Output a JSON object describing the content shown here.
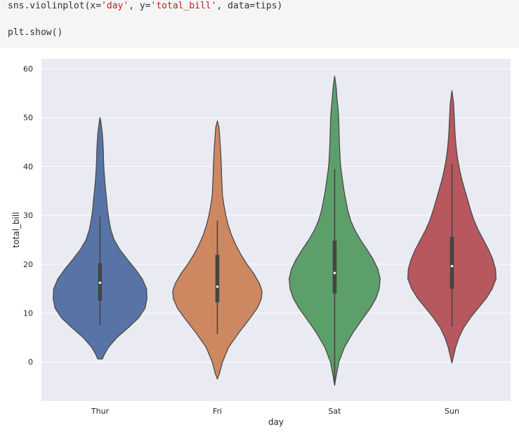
{
  "code": {
    "line1": {
      "t1": "sns.violinplot(x=",
      "s1": "'day'",
      "t2": ", y=",
      "s2": "'total_bill'",
      "t3": ", data=tips)"
    },
    "line2": "plt.show()"
  },
  "chart_data": {
    "type": "violin",
    "title": "",
    "xlabel": "day",
    "ylabel": "total_bill",
    "ylim": [
      -8,
      62
    ],
    "yticks": [
      0,
      10,
      20,
      30,
      40,
      50,
      60
    ],
    "grid": true,
    "background": "#eaeaf2",
    "categories": [
      "Thur",
      "Fri",
      "Sat",
      "Sun"
    ],
    "colors": [
      "#5874a6",
      "#cd8862",
      "#5d9f6a",
      "#b7585e"
    ],
    "edge_color": "#4a4a4a",
    "violins": [
      {
        "category": "Thur",
        "profile": [
          [
            0.6,
            0.05
          ],
          [
            1.5,
            0.09
          ],
          [
            3,
            0.18
          ],
          [
            5,
            0.36
          ],
          [
            7,
            0.6
          ],
          [
            9,
            0.82
          ],
          [
            11,
            0.96
          ],
          [
            13,
            1.0
          ],
          [
            15,
            0.99
          ],
          [
            17,
            0.9
          ],
          [
            19,
            0.75
          ],
          [
            21,
            0.58
          ],
          [
            23,
            0.42
          ],
          [
            25,
            0.3
          ],
          [
            27,
            0.23
          ],
          [
            29,
            0.19
          ],
          [
            31,
            0.16
          ],
          [
            33,
            0.14
          ],
          [
            35,
            0.12
          ],
          [
            37,
            0.1
          ],
          [
            39,
            0.085
          ],
          [
            41,
            0.075
          ],
          [
            43,
            0.07
          ],
          [
            45,
            0.06
          ],
          [
            47,
            0.045
          ],
          [
            49,
            0.02
          ],
          [
            50,
            0.0
          ]
        ],
        "box": {
          "q1": 12.5,
          "median": 16.2,
          "q3": 20.2,
          "whisker_low": 7.5,
          "whisker_high": 29.8
        }
      },
      {
        "category": "Fri",
        "profile": [
          [
            -3.5,
            0.0
          ],
          [
            -2.5,
            0.04
          ],
          [
            0,
            0.11
          ],
          [
            3,
            0.24
          ],
          [
            6,
            0.46
          ],
          [
            9,
            0.7
          ],
          [
            11,
            0.85
          ],
          [
            13,
            0.94
          ],
          [
            14.5,
            0.95
          ],
          [
            16,
            0.9
          ],
          [
            18,
            0.78
          ],
          [
            20,
            0.63
          ],
          [
            22,
            0.5
          ],
          [
            24,
            0.39
          ],
          [
            26,
            0.3
          ],
          [
            28,
            0.23
          ],
          [
            30,
            0.18
          ],
          [
            32,
            0.14
          ],
          [
            34,
            0.11
          ],
          [
            36,
            0.1
          ],
          [
            38,
            0.09
          ],
          [
            40,
            0.085
          ],
          [
            42,
            0.075
          ],
          [
            44,
            0.065
          ],
          [
            46,
            0.05
          ],
          [
            48,
            0.035
          ],
          [
            49.3,
            0.0
          ]
        ],
        "box": {
          "q1": 12.2,
          "median": 15.4,
          "q3": 21.9,
          "whisker_low": 5.7,
          "whisker_high": 28.9
        }
      },
      {
        "category": "Sat",
        "profile": [
          [
            -4.8,
            0.0
          ],
          [
            -3,
            0.03
          ],
          [
            0,
            0.09
          ],
          [
            3,
            0.21
          ],
          [
            6,
            0.39
          ],
          [
            9,
            0.61
          ],
          [
            11,
            0.76
          ],
          [
            13,
            0.88
          ],
          [
            15,
            0.95
          ],
          [
            17,
            0.97
          ],
          [
            19,
            0.92
          ],
          [
            21,
            0.82
          ],
          [
            23,
            0.69
          ],
          [
            25,
            0.55
          ],
          [
            27,
            0.43
          ],
          [
            29,
            0.34
          ],
          [
            31,
            0.28
          ],
          [
            33,
            0.24
          ],
          [
            35,
            0.2
          ],
          [
            37,
            0.17
          ],
          [
            39,
            0.14
          ],
          [
            41,
            0.12
          ],
          [
            43,
            0.11
          ],
          [
            45,
            0.1
          ],
          [
            47,
            0.095
          ],
          [
            50,
            0.085
          ],
          [
            52,
            0.07
          ],
          [
            54,
            0.05
          ],
          [
            56,
            0.035
          ],
          [
            58.5,
            0.0
          ]
        ],
        "box": {
          "q1": 14.0,
          "median": 18.2,
          "q3": 24.8,
          "whisker_low": -4.5,
          "whisker_high": 39.5
        }
      },
      {
        "category": "Sun",
        "profile": [
          [
            -0.2,
            0.0
          ],
          [
            1,
            0.03
          ],
          [
            3,
            0.08
          ],
          [
            5,
            0.15
          ],
          [
            7,
            0.25
          ],
          [
            9,
            0.39
          ],
          [
            11,
            0.56
          ],
          [
            13,
            0.73
          ],
          [
            15,
            0.86
          ],
          [
            17,
            0.94
          ],
          [
            19,
            0.93
          ],
          [
            21,
            0.87
          ],
          [
            23,
            0.78
          ],
          [
            25,
            0.67
          ],
          [
            27,
            0.56
          ],
          [
            29,
            0.47
          ],
          [
            31,
            0.4
          ],
          [
            33,
            0.34
          ],
          [
            35,
            0.28
          ],
          [
            37,
            0.22
          ],
          [
            39,
            0.17
          ],
          [
            41,
            0.13
          ],
          [
            43,
            0.1
          ],
          [
            45,
            0.08
          ],
          [
            47,
            0.065
          ],
          [
            49,
            0.055
          ],
          [
            51,
            0.045
          ],
          [
            53,
            0.035
          ],
          [
            55.5,
            0.0
          ]
        ],
        "box": {
          "q1": 15.0,
          "median": 19.6,
          "q3": 25.6,
          "whisker_low": 7.2,
          "whisker_high": 40.5
        }
      }
    ]
  }
}
